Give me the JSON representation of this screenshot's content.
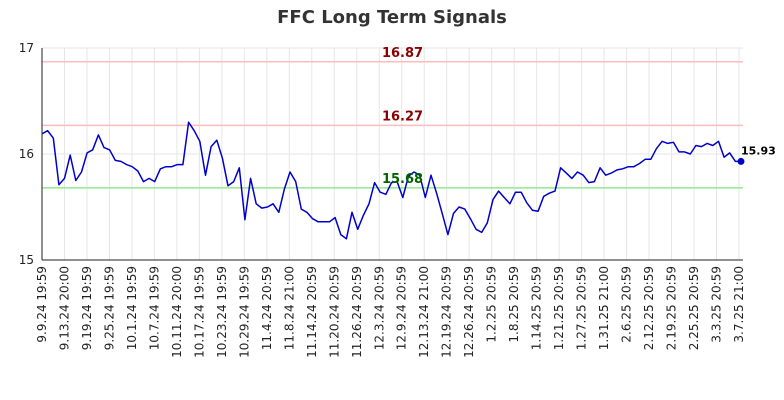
{
  "chart_data": {
    "type": "line",
    "title": "FFC Long Term Signals",
    "ylim": [
      15,
      17
    ],
    "yticks": [
      "15",
      "16",
      "17"
    ],
    "grid": true,
    "x_tick_labels": [
      "9.9.24 19:59",
      "9.13.24 20:00",
      "9.19.24 19:59",
      "9.25.24 19:59",
      "10.1.24 19:59",
      "10.7.24 19:59",
      "10.11.24 20:00",
      "10.17.24 19:59",
      "10.23.24 19:59",
      "10.29.24 19:59",
      "11.4.24 20:59",
      "11.8.24 21:00",
      "11.14.24 20:59",
      "11.20.24 20:59",
      "11.26.24 20:59",
      "12.3.24 20:59",
      "12.9.24 20:59",
      "12.13.24 21:00",
      "12.19.24 20:59",
      "12.26.24 20:59",
      "1.2.25 20:59",
      "1.8.25 20:59",
      "1.14.25 20:59",
      "1.21.25 20:59",
      "1.27.25 20:59",
      "1.31.25 21:00",
      "2.6.25 20:59",
      "2.12.25 20:59",
      "2.19.25 20:59",
      "2.25.25 20:59",
      "3.3.25 20:59",
      "3.7.25 21:00"
    ],
    "series": [
      {
        "color": "#0000cc",
        "values": [
          16.19,
          16.22,
          16.15,
          15.71,
          15.77,
          15.99,
          15.75,
          15.83,
          16.01,
          16.04,
          16.18,
          16.06,
          16.04,
          15.94,
          15.93,
          15.9,
          15.88,
          15.84,
          15.74,
          15.77,
          15.74,
          15.86,
          15.88,
          15.88,
          15.9,
          15.9,
          16.3,
          16.22,
          16.12,
          15.8,
          16.07,
          16.13,
          15.96,
          15.7,
          15.74,
          15.87,
          15.38,
          15.77,
          15.53,
          15.49,
          15.5,
          15.53,
          15.45,
          15.67,
          15.83,
          15.74,
          15.48,
          15.45,
          15.39,
          15.36,
          15.36,
          15.36,
          15.4,
          15.24,
          15.2,
          15.45,
          15.29,
          15.42,
          15.53,
          15.73,
          15.64,
          15.62,
          15.73,
          15.74,
          15.59,
          15.79,
          15.83,
          15.8,
          15.59,
          15.8,
          15.63,
          15.44,
          15.24,
          15.44,
          15.5,
          15.48,
          15.39,
          15.29,
          15.26,
          15.35,
          15.57,
          15.65,
          15.59,
          15.53,
          15.64,
          15.64,
          15.54,
          15.47,
          15.46,
          15.6,
          15.63,
          15.65,
          15.87,
          15.82,
          15.77,
          15.83,
          15.8,
          15.73,
          15.74,
          15.87,
          15.8,
          15.82,
          15.85,
          15.86,
          15.88,
          15.88,
          15.91,
          15.95,
          15.95,
          16.05,
          16.12,
          16.1,
          16.11,
          16.02,
          16.02,
          16.0,
          16.08,
          16.07,
          16.1,
          16.08,
          16.12,
          15.97,
          16.01,
          15.93,
          15.93
        ]
      }
    ],
    "last_value_label": "15.93",
    "horizontal_lines": [
      {
        "value": 16.87,
        "label": "16.87",
        "line_color": "#ffbcbc",
        "label_color": "#8b0000"
      },
      {
        "value": 16.27,
        "label": "16.27",
        "line_color": "#ffbcbc",
        "label_color": "#8b0000"
      },
      {
        "value": 15.68,
        "label": "15.68",
        "line_color": "#90e890",
        "label_color": "#006400"
      }
    ]
  }
}
